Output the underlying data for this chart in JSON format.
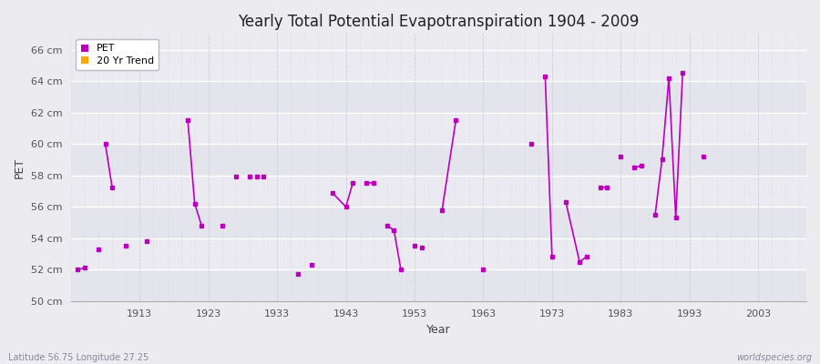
{
  "title": "Yearly Total Potential Evapotranspiration 1904 - 2009",
  "xlabel": "Year",
  "ylabel": "PET",
  "subtitle_left": "Latitude 56.75 Longitude 27.25",
  "subtitle_right": "worldspecies.org",
  "ylim": [
    50,
    67
  ],
  "xlim": [
    1903,
    2010
  ],
  "ytick_labels": [
    "50 cm",
    "52 cm",
    "54 cm",
    "56 cm",
    "58 cm",
    "60 cm",
    "62 cm",
    "64 cm",
    "66 cm"
  ],
  "ytick_values": [
    50,
    52,
    54,
    56,
    58,
    60,
    62,
    64,
    66
  ],
  "xtick_values": [
    1913,
    1923,
    1933,
    1943,
    1953,
    1963,
    1973,
    1983,
    1993,
    2003
  ],
  "pet_color": "#bb00bb",
  "trend_color": "#ffa500",
  "bg_color": "#ebebf0",
  "band_colors": [
    "#e8e8ee",
    "#dddde5"
  ],
  "grid_color": "#ffffff",
  "pet_data": [
    [
      1904,
      52.0
    ],
    [
      1905,
      52.1
    ],
    [
      1907,
      53.3
    ],
    [
      1908,
      60.0
    ],
    [
      1909,
      57.2
    ],
    [
      1911,
      53.5
    ],
    [
      1914,
      53.8
    ],
    [
      1920,
      61.5
    ],
    [
      1921,
      56.2
    ],
    [
      1922,
      54.8
    ],
    [
      1925,
      54.8
    ],
    [
      1927,
      57.9
    ],
    [
      1929,
      57.9
    ],
    [
      1930,
      57.9
    ],
    [
      1931,
      57.9
    ],
    [
      1936,
      51.7
    ],
    [
      1938,
      52.3
    ],
    [
      1941,
      56.9
    ],
    [
      1943,
      56.0
    ],
    [
      1944,
      57.5
    ],
    [
      1946,
      57.5
    ],
    [
      1947,
      57.5
    ],
    [
      1949,
      54.8
    ],
    [
      1950,
      54.5
    ],
    [
      1951,
      52.0
    ],
    [
      1953,
      53.5
    ],
    [
      1954,
      53.4
    ],
    [
      1957,
      55.8
    ],
    [
      1959,
      61.5
    ],
    [
      1963,
      52.0
    ],
    [
      1970,
      60.0
    ],
    [
      1972,
      64.3
    ],
    [
      1973,
      52.8
    ],
    [
      1975,
      56.3
    ],
    [
      1977,
      52.5
    ],
    [
      1978,
      52.8
    ],
    [
      1980,
      57.2
    ],
    [
      1981,
      57.2
    ],
    [
      1983,
      59.2
    ],
    [
      1985,
      58.5
    ],
    [
      1986,
      58.6
    ],
    [
      1988,
      55.5
    ],
    [
      1989,
      59.0
    ],
    [
      1990,
      64.2
    ],
    [
      1991,
      55.3
    ],
    [
      1992,
      64.5
    ],
    [
      1995,
      59.2
    ]
  ],
  "connected_segments": [
    [
      [
        1904,
        52.0
      ],
      [
        1905,
        52.1
      ]
    ],
    [
      [
        1908,
        60.0
      ],
      [
        1909,
        57.2
      ]
    ],
    [
      [
        1920,
        61.5
      ],
      [
        1921,
        56.2
      ],
      [
        1922,
        54.8
      ]
    ],
    [
      [
        1941,
        56.9
      ],
      [
        1943,
        56.0
      ],
      [
        1944,
        57.5
      ]
    ],
    [
      [
        1946,
        57.5
      ],
      [
        1947,
        57.5
      ]
    ],
    [
      [
        1949,
        54.8
      ],
      [
        1950,
        54.5
      ],
      [
        1951,
        52.0
      ]
    ],
    [
      [
        1957,
        55.8
      ],
      [
        1959,
        61.5
      ]
    ],
    [
      [
        1972,
        64.3
      ],
      [
        1973,
        52.8
      ]
    ],
    [
      [
        1975,
        56.3
      ],
      [
        1977,
        52.5
      ],
      [
        1978,
        52.8
      ]
    ],
    [
      [
        1980,
        57.2
      ],
      [
        1981,
        57.2
      ]
    ],
    [
      [
        1985,
        58.5
      ],
      [
        1986,
        58.6
      ]
    ],
    [
      [
        1988,
        55.5
      ],
      [
        1989,
        59.0
      ],
      [
        1990,
        64.2
      ],
      [
        1991,
        55.3
      ],
      [
        1992,
        64.5
      ]
    ]
  ]
}
